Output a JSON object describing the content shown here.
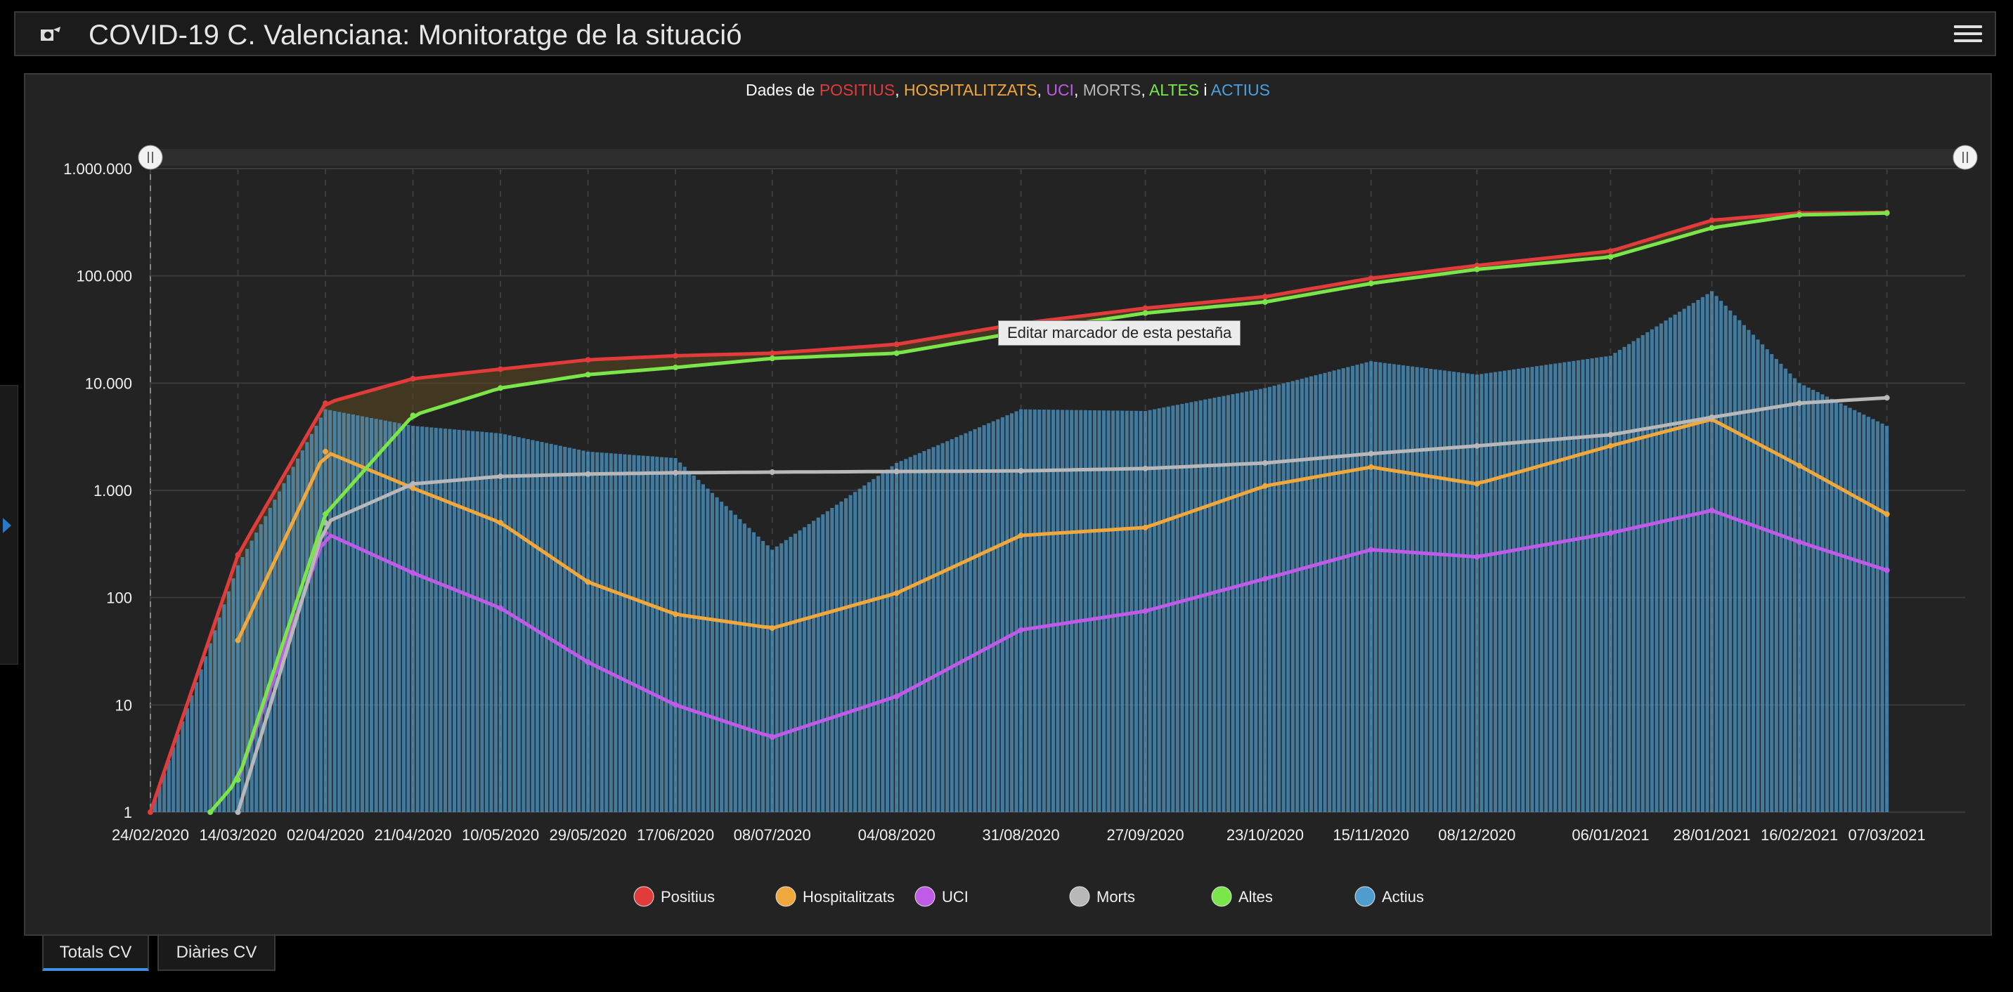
{
  "app": {
    "title": "COVID-19 C. Valenciana: Monitoratge de la situació",
    "tooltip": "Editar marcador de esta pestaña"
  },
  "tabs": [
    {
      "label": "Totals CV",
      "active": true
    },
    {
      "label": "Diàries CV",
      "active": false
    }
  ],
  "chart_data": {
    "type": "line",
    "title_parts": [
      {
        "text": "Dades de ",
        "color": "#ffffff"
      },
      {
        "text": "POSITIUS",
        "color": "#e23b3b"
      },
      {
        "text": ", ",
        "color": "#ffffff"
      },
      {
        "text": "HOSPITALITZATS",
        "color": "#f0a83c"
      },
      {
        "text": ", ",
        "color": "#ffffff"
      },
      {
        "text": "UCI",
        "color": "#c05ae8"
      },
      {
        "text": ", ",
        "color": "#ffffff"
      },
      {
        "text": "MORTS",
        "color": "#b8b8b8"
      },
      {
        "text": ", ",
        "color": "#ffffff"
      },
      {
        "text": "ALTES",
        "color": "#7ae64a"
      },
      {
        "text": " i ",
        "color": "#ffffff"
      },
      {
        "text": "ACTIUS",
        "color": "#4aa0e0"
      }
    ],
    "y_scale": "log",
    "ylim": [
      1,
      1000000
    ],
    "y_ticks": [
      "1",
      "10",
      "100",
      "1.000",
      "10.000",
      "100.000",
      "1.000.000"
    ],
    "x_ticks": [
      "24/02/2020",
      "14/03/2020",
      "02/04/2020",
      "21/04/2020",
      "10/05/2020",
      "29/05/2020",
      "17/06/2020",
      "08/07/2020",
      "04/08/2020",
      "31/08/2020",
      "27/09/2020",
      "23/10/2020",
      "15/11/2020",
      "08/12/2020",
      "06/01/2021",
      "28/01/2021",
      "16/02/2021",
      "07/03/2021"
    ],
    "grid": true,
    "legend_position": "bottom",
    "series": [
      {
        "name": "Positius",
        "color": "#e23b3b",
        "style": "line",
        "x": [
          "24/02/2020",
          "14/03/2020",
          "02/04/2020",
          "21/04/2020",
          "10/05/2020",
          "29/05/2020",
          "17/06/2020",
          "08/07/2020",
          "04/08/2020",
          "31/08/2020",
          "27/09/2020",
          "23/10/2020",
          "15/11/2020",
          "08/12/2020",
          "06/01/2021",
          "28/01/2021",
          "16/02/2021",
          "07/03/2021"
        ],
        "values": [
          1,
          250,
          6500,
          11000,
          13500,
          16500,
          18000,
          19000,
          23000,
          36000,
          50000,
          64000,
          95000,
          125000,
          170000,
          330000,
          385000,
          390000
        ]
      },
      {
        "name": "Hospitalitzats",
        "color": "#f0a83c",
        "style": "line",
        "x": [
          "14/03/2020",
          "02/04/2020",
          "21/04/2020",
          "10/05/2020",
          "29/05/2020",
          "17/06/2020",
          "08/07/2020",
          "04/08/2020",
          "31/08/2020",
          "27/09/2020",
          "23/10/2020",
          "15/11/2020",
          "08/12/2020",
          "06/01/2021",
          "28/01/2021",
          "16/02/2021",
          "07/03/2021"
        ],
        "values": [
          40,
          2300,
          1050,
          500,
          140,
          70,
          52,
          110,
          380,
          450,
          1100,
          1650,
          1150,
          2600,
          4600,
          1700,
          600
        ]
      },
      {
        "name": "UCI",
        "color": "#c05ae8",
        "style": "line",
        "x": [
          "14/03/2020",
          "02/04/2020",
          "21/04/2020",
          "10/05/2020",
          "29/05/2020",
          "17/06/2020",
          "08/07/2020",
          "04/08/2020",
          "31/08/2020",
          "27/09/2020",
          "23/10/2020",
          "15/11/2020",
          "08/12/2020",
          "06/01/2021",
          "28/01/2021",
          "16/02/2021",
          "07/03/2021"
        ],
        "values": [
          2,
          400,
          170,
          80,
          25,
          10,
          5,
          12,
          50,
          75,
          150,
          280,
          240,
          400,
          650,
          330,
          180
        ]
      },
      {
        "name": "Morts",
        "color": "#b8b8b8",
        "style": "line",
        "x": [
          "14/03/2020",
          "02/04/2020",
          "21/04/2020",
          "10/05/2020",
          "29/05/2020",
          "17/06/2020",
          "08/07/2020",
          "04/08/2020",
          "31/08/2020",
          "27/09/2020",
          "23/10/2020",
          "15/11/2020",
          "08/12/2020",
          "06/01/2021",
          "28/01/2021",
          "16/02/2021",
          "07/03/2021"
        ],
        "values": [
          1,
          500,
          1150,
          1350,
          1420,
          1460,
          1480,
          1500,
          1520,
          1600,
          1800,
          2200,
          2600,
          3300,
          4800,
          6500,
          7300
        ]
      },
      {
        "name": "Altes",
        "color": "#7ae64a",
        "style": "line",
        "x": [
          "08/03/2020",
          "14/03/2020",
          "02/04/2020",
          "21/04/2020",
          "10/05/2020",
          "29/05/2020",
          "17/06/2020",
          "08/07/2020",
          "04/08/2020",
          "31/08/2020",
          "27/09/2020",
          "23/10/2020",
          "15/11/2020",
          "08/12/2020",
          "06/01/2021",
          "28/01/2021",
          "16/02/2021",
          "07/03/2021"
        ],
        "values": [
          1,
          2,
          600,
          5000,
          9000,
          12000,
          14000,
          17000,
          19000,
          30000,
          45000,
          57000,
          85000,
          115000,
          150000,
          280000,
          370000,
          385000
        ]
      },
      {
        "name": "Actius",
        "color": "#4f9ccf",
        "style": "bar",
        "x": [
          "24/02/2020",
          "14/03/2020",
          "02/04/2020",
          "21/04/2020",
          "10/05/2020",
          "29/05/2020",
          "17/06/2020",
          "08/07/2020",
          "04/08/2020",
          "31/08/2020",
          "27/09/2020",
          "23/10/2020",
          "15/11/2020",
          "08/12/2020",
          "06/01/2021",
          "28/01/2021",
          "16/02/2021",
          "07/03/2021"
        ],
        "values": [
          1,
          200,
          5700,
          4000,
          3400,
          2300,
          2000,
          280,
          1800,
          5700,
          5500,
          9000,
          16000,
          12000,
          18000,
          72000,
          10000,
          4000
        ]
      }
    ]
  }
}
